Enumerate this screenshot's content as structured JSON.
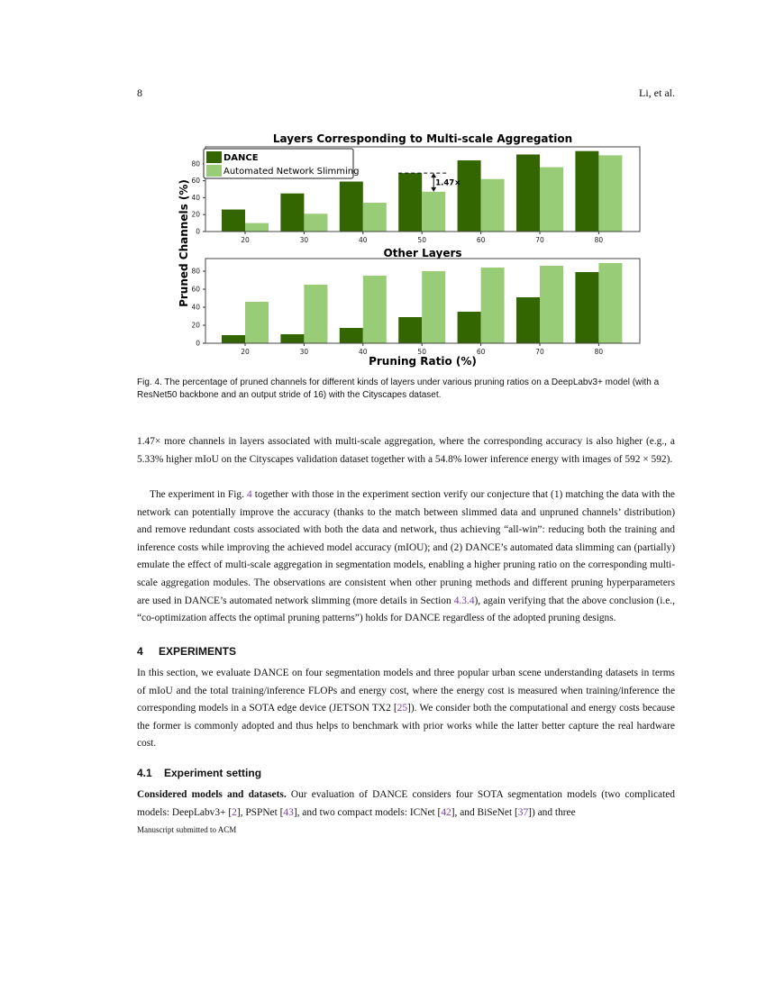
{
  "header": {
    "page_number": "8",
    "authors": "Li, et al."
  },
  "chart_data": [
    {
      "type": "bar",
      "title": "Layers Corresponding to Multi-scale Aggregation",
      "ylabel": "Pruned Channels (%)",
      "xlabel": "",
      "categories": [
        "20",
        "30",
        "40",
        "50",
        "60",
        "70",
        "80"
      ],
      "series": [
        {
          "name": "DANCE",
          "color": "#336600",
          "values": [
            26,
            45,
            59,
            69,
            84,
            91,
            95
          ]
        },
        {
          "name": "Automated Network Slimming",
          "color": "#99cc77",
          "values": [
            10,
            21,
            34,
            47,
            62,
            76,
            90
          ]
        }
      ],
      "yticks": [
        0,
        20,
        40,
        60,
        80
      ],
      "ylim": [
        0,
        100
      ],
      "legend": "top-left",
      "grid": false,
      "annotation": {
        "text": "1.47×",
        "category": "50",
        "from": 69,
        "to": 47
      }
    },
    {
      "type": "bar",
      "title": "Other Layers",
      "ylabel": "Pruned Channels (%)",
      "xlabel": "Pruning Ratio (%)",
      "categories": [
        "20",
        "30",
        "40",
        "50",
        "60",
        "70",
        "80"
      ],
      "series": [
        {
          "name": "DANCE",
          "color": "#336600",
          "values": [
            9,
            10,
            17,
            29,
            35,
            51,
            79
          ]
        },
        {
          "name": "Automated Network Slimming",
          "color": "#99cc77",
          "values": [
            46,
            65,
            75,
            80,
            84,
            86,
            89
          ]
        }
      ],
      "yticks": [
        0,
        20,
        40,
        60,
        80
      ],
      "ylim": [
        0,
        94
      ],
      "grid": false
    }
  ],
  "caption": "Fig. 4.  The percentage of pruned channels for different kinds of layers under various pruning ratios on a DeepLabv3+ model (with a ResNet50 backbone and an output stride of 16) with the Cityscapes dataset.",
  "paragraphs": [
    [
      {
        "t": "1.47× more channels in layers associated with multi-scale aggregation, where the corresponding accuracy is also higher (e.g., a 5.33% higher mIoU on the Cityscapes validation dataset together with a 54.8% lower inference energy with images of 592 × 592)."
      }
    ],
    [
      {
        "t": "The experiment in Fig. "
      },
      {
        "t": "4",
        "ref": true
      },
      {
        "t": " together with those in the experiment section verify our conjecture that (1) matching the data with the network can potentially improve the accuracy (thanks to the match between slimmed data and unpruned channels’ distribution) and remove redundant costs associated with both the data and network, thus achieving “all-win”: reducing both the training and inference costs while improving the achieved model accuracy (mIOU); and (2) DANCE’s automated data slimming can (partially) emulate the effect of multi-scale aggregation in segmentation models, enabling a higher pruning ratio on the corresponding multi-scale aggregation modules. The observations are consistent when other pruning methods and different pruning hyperparameters are used in DANCE’s automated network slimming (more details in Section "
      },
      {
        "t": "4.3.4",
        "ref": true
      },
      {
        "t": "), again verifying that the above conclusion (i.e., “co-optimization affects the optimal pruning patterns”) holds for DANCE regardless of the adopted pruning designs."
      }
    ],
    [
      {
        "t": "In this section, we evaluate DANCE on four segmentation models and three popular urban scene understanding datasets in terms of mIoU and the total training/inference FLOPs and energy cost, where the energy cost is measured when training/inference the corresponding models in a SOTA edge device (JETSON TX2 ["
      },
      {
        "t": "25",
        "ref": true
      },
      {
        "t": "]). We consider both the computational and energy costs because the former is commonly adopted and thus helps to benchmark with prior works while the latter better capture the real hardware cost."
      }
    ],
    [
      {
        "t": "Considered models and datasets.",
        "bold": true
      },
      {
        "t": " Our evaluation of DANCE considers four SOTA segmentation models (two complicated models: DeepLabv3+ ["
      },
      {
        "t": "2",
        "ref": true
      },
      {
        "t": "], PSPNet ["
      },
      {
        "t": "43",
        "ref": true
      },
      {
        "t": "], and two compact models: ICNet ["
      },
      {
        "t": "42",
        "ref": true
      },
      {
        "t": "], and BiSeNet ["
      },
      {
        "t": "37",
        "ref": true
      },
      {
        "t": "]) and three"
      }
    ]
  ],
  "sections": [
    {
      "number": "4",
      "title": "EXPERIMENTS"
    },
    {
      "number": "4.1",
      "title": "Experiment setting"
    }
  ],
  "footer": "Manuscript submitted to ACM"
}
